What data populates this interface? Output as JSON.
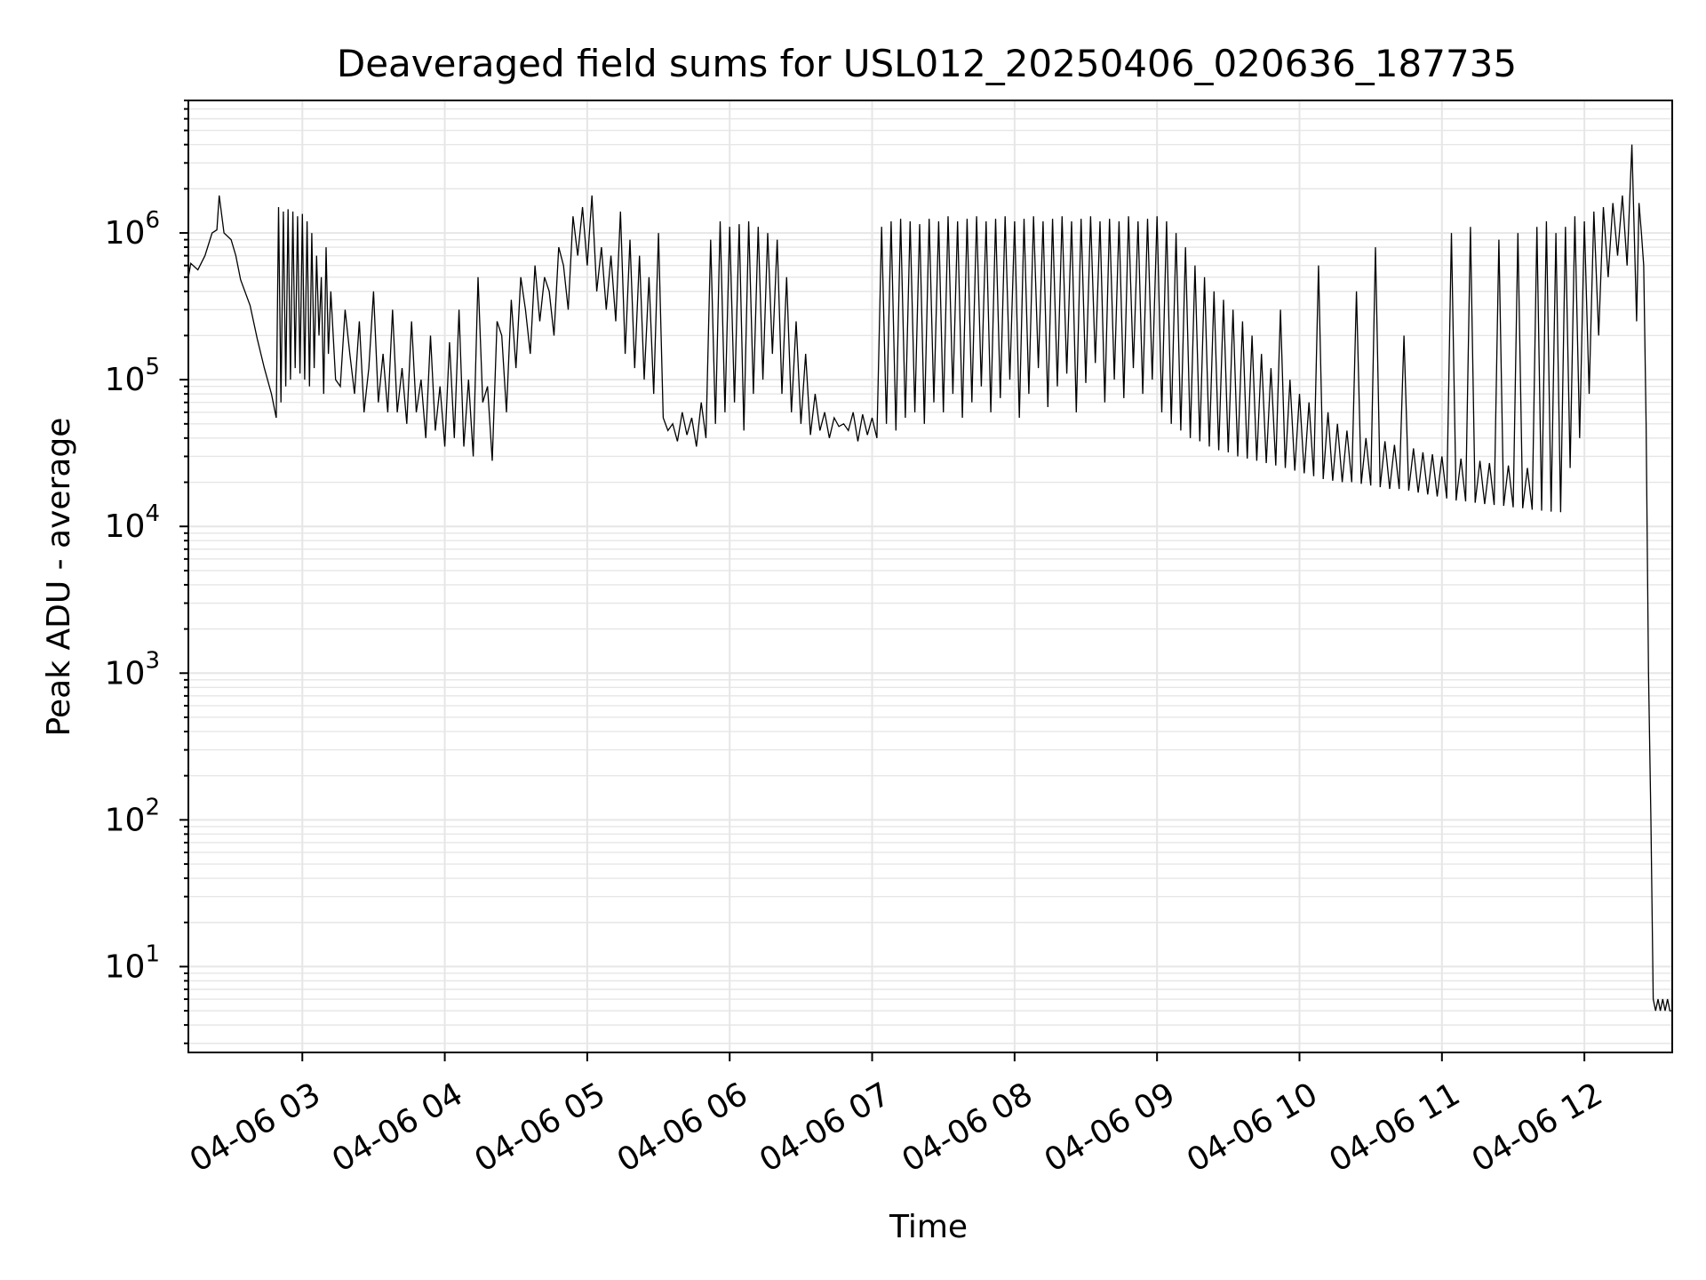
{
  "chart_data": {
    "type": "line",
    "title": "Deaveraged field sums for USL012_20250406_020636_187735",
    "xlabel": "Time",
    "ylabel": "Peak ADU - average",
    "yscale": "log",
    "ylim": [
      2.6,
      8000000
    ],
    "xlim": [
      "2025-04-06 02:12",
      "2025-04-06 12:37"
    ],
    "grid": true,
    "line_color": "#000000",
    "x_ticks": [
      {
        "t": "2025-04-06 03:00",
        "label": "04-06 03"
      },
      {
        "t": "2025-04-06 04:00",
        "label": "04-06 04"
      },
      {
        "t": "2025-04-06 05:00",
        "label": "04-06 05"
      },
      {
        "t": "2025-04-06 06:00",
        "label": "04-06 06"
      },
      {
        "t": "2025-04-06 07:00",
        "label": "04-06 07"
      },
      {
        "t": "2025-04-06 08:00",
        "label": "04-06 08"
      },
      {
        "t": "2025-04-06 09:00",
        "label": "04-06 09"
      },
      {
        "t": "2025-04-06 10:00",
        "label": "04-06 10"
      },
      {
        "t": "2025-04-06 11:00",
        "label": "04-06 11"
      },
      {
        "t": "2025-04-06 12:00",
        "label": "04-06 12"
      }
    ],
    "y_ticks": [
      {
        "value": 10,
        "base": "10",
        "exp": "1"
      },
      {
        "value": 100,
        "base": "10",
        "exp": "2"
      },
      {
        "value": 1000,
        "base": "10",
        "exp": "3"
      },
      {
        "value": 10000,
        "base": "10",
        "exp": "4"
      },
      {
        "value": 100000,
        "base": "10",
        "exp": "5"
      },
      {
        "value": 1000000,
        "base": "10",
        "exp": "6"
      }
    ],
    "series": [
      {
        "x": [
          "2025-04-06 02:12",
          "2025-04-06 02:13",
          "2025-04-06 02:16",
          "2025-04-06 02:19",
          "2025-04-06 02:22",
          "2025-04-06 02:24",
          "2025-04-06 02:25",
          "2025-04-06 02:27",
          "2025-04-06 02:30",
          "2025-04-06 02:32",
          "2025-04-06 02:34",
          "2025-04-06 02:38",
          "2025-04-06 02:41",
          "2025-04-06 02:44",
          "2025-04-06 02:47",
          "2025-04-06 02:49",
          "2025-04-06 02:50",
          "2025-04-06 02:51",
          "2025-04-06 02:52",
          "2025-04-06 02:53",
          "2025-04-06 02:54",
          "2025-04-06 02:55",
          "2025-04-06 02:56",
          "2025-04-06 02:57",
          "2025-04-06 02:58",
          "2025-04-06 02:59",
          "2025-04-06 03:00",
          "2025-04-06 03:01",
          "2025-04-06 03:02",
          "2025-04-06 03:03",
          "2025-04-06 03:04",
          "2025-04-06 03:05",
          "2025-04-06 03:06",
          "2025-04-06 03:07",
          "2025-04-06 03:08",
          "2025-04-06 03:09",
          "2025-04-06 03:10",
          "2025-04-06 03:11",
          "2025-04-06 03:12",
          "2025-04-06 03:14",
          "2025-04-06 03:16",
          "2025-04-06 03:18",
          "2025-04-06 03:20",
          "2025-04-06 03:22",
          "2025-04-06 03:24",
          "2025-04-06 03:26",
          "2025-04-06 03:28",
          "2025-04-06 03:30",
          "2025-04-06 03:32",
          "2025-04-06 03:34",
          "2025-04-06 03:36",
          "2025-04-06 03:38",
          "2025-04-06 03:40",
          "2025-04-06 03:42",
          "2025-04-06 03:44",
          "2025-04-06 03:46",
          "2025-04-06 03:48",
          "2025-04-06 03:50",
          "2025-04-06 03:52",
          "2025-04-06 03:54",
          "2025-04-06 03:56",
          "2025-04-06 03:58",
          "2025-04-06 04:00",
          "2025-04-06 04:02",
          "2025-04-06 04:04",
          "2025-04-06 04:06",
          "2025-04-06 04:08",
          "2025-04-06 04:10",
          "2025-04-06 04:12",
          "2025-04-06 04:14",
          "2025-04-06 04:16",
          "2025-04-06 04:18",
          "2025-04-06 04:20",
          "2025-04-06 04:22",
          "2025-04-06 04:24",
          "2025-04-06 04:26",
          "2025-04-06 04:28",
          "2025-04-06 04:30",
          "2025-04-06 04:32",
          "2025-04-06 04:34",
          "2025-04-06 04:36",
          "2025-04-06 04:38",
          "2025-04-06 04:40",
          "2025-04-06 04:42",
          "2025-04-06 04:44",
          "2025-04-06 04:46",
          "2025-04-06 04:48",
          "2025-04-06 04:50",
          "2025-04-06 04:52",
          "2025-04-06 04:54",
          "2025-04-06 04:56",
          "2025-04-06 04:58",
          "2025-04-06 05:00",
          "2025-04-06 05:02",
          "2025-04-06 05:04",
          "2025-04-06 05:06",
          "2025-04-06 05:08",
          "2025-04-06 05:10",
          "2025-04-06 05:12",
          "2025-04-06 05:14",
          "2025-04-06 05:16",
          "2025-04-06 05:18",
          "2025-04-06 05:20",
          "2025-04-06 05:22",
          "2025-04-06 05:24",
          "2025-04-06 05:26",
          "2025-04-06 05:28",
          "2025-04-06 05:30",
          "2025-04-06 05:32",
          "2025-04-06 05:34",
          "2025-04-06 05:36",
          "2025-04-06 05:38",
          "2025-04-06 05:40",
          "2025-04-06 05:42",
          "2025-04-06 05:44",
          "2025-04-06 05:46",
          "2025-04-06 05:48",
          "2025-04-06 05:50",
          "2025-04-06 05:52",
          "2025-04-06 05:54",
          "2025-04-06 05:56",
          "2025-04-06 05:58",
          "2025-04-06 06:00",
          "2025-04-06 06:02",
          "2025-04-06 06:04",
          "2025-04-06 06:06",
          "2025-04-06 06:08",
          "2025-04-06 06:10",
          "2025-04-06 06:12",
          "2025-04-06 06:14",
          "2025-04-06 06:16",
          "2025-04-06 06:18",
          "2025-04-06 06:20",
          "2025-04-06 06:22",
          "2025-04-06 06:24",
          "2025-04-06 06:26",
          "2025-04-06 06:28",
          "2025-04-06 06:30",
          "2025-04-06 06:32",
          "2025-04-06 06:34",
          "2025-04-06 06:36",
          "2025-04-06 06:38",
          "2025-04-06 06:40",
          "2025-04-06 06:42",
          "2025-04-06 06:44",
          "2025-04-06 06:46",
          "2025-04-06 06:48",
          "2025-04-06 06:50",
          "2025-04-06 06:52",
          "2025-04-06 06:54",
          "2025-04-06 06:56",
          "2025-04-06 06:58",
          "2025-04-06 07:00",
          "2025-04-06 07:02",
          "2025-04-06 07:04",
          "2025-04-06 07:06",
          "2025-04-06 07:08",
          "2025-04-06 07:10",
          "2025-04-06 07:12",
          "2025-04-06 07:14",
          "2025-04-06 07:16",
          "2025-04-06 07:18",
          "2025-04-06 07:20",
          "2025-04-06 07:22",
          "2025-04-06 07:24",
          "2025-04-06 07:26",
          "2025-04-06 07:28",
          "2025-04-06 07:30",
          "2025-04-06 07:32",
          "2025-04-06 07:34",
          "2025-04-06 07:36",
          "2025-04-06 07:38",
          "2025-04-06 07:40",
          "2025-04-06 07:42",
          "2025-04-06 07:44",
          "2025-04-06 07:46",
          "2025-04-06 07:48",
          "2025-04-06 07:50",
          "2025-04-06 07:52",
          "2025-04-06 07:54",
          "2025-04-06 07:56",
          "2025-04-06 07:58",
          "2025-04-06 08:00",
          "2025-04-06 08:02",
          "2025-04-06 08:04",
          "2025-04-06 08:06",
          "2025-04-06 08:08",
          "2025-04-06 08:10",
          "2025-04-06 08:12",
          "2025-04-06 08:14",
          "2025-04-06 08:16",
          "2025-04-06 08:18",
          "2025-04-06 08:20",
          "2025-04-06 08:22",
          "2025-04-06 08:24",
          "2025-04-06 08:26",
          "2025-04-06 08:28",
          "2025-04-06 08:30",
          "2025-04-06 08:32",
          "2025-04-06 08:34",
          "2025-04-06 08:36",
          "2025-04-06 08:38",
          "2025-04-06 08:40",
          "2025-04-06 08:42",
          "2025-04-06 08:44",
          "2025-04-06 08:46",
          "2025-04-06 08:48",
          "2025-04-06 08:50",
          "2025-04-06 08:52",
          "2025-04-06 08:54",
          "2025-04-06 08:56",
          "2025-04-06 08:58",
          "2025-04-06 09:00",
          "2025-04-06 09:02",
          "2025-04-06 09:04",
          "2025-04-06 09:06",
          "2025-04-06 09:08",
          "2025-04-06 09:10",
          "2025-04-06 09:12",
          "2025-04-06 09:14",
          "2025-04-06 09:16",
          "2025-04-06 09:18",
          "2025-04-06 09:20",
          "2025-04-06 09:22",
          "2025-04-06 09:24",
          "2025-04-06 09:26",
          "2025-04-06 09:28",
          "2025-04-06 09:30",
          "2025-04-06 09:32",
          "2025-04-06 09:34",
          "2025-04-06 09:36",
          "2025-04-06 09:38",
          "2025-04-06 09:40",
          "2025-04-06 09:42",
          "2025-04-06 09:44",
          "2025-04-06 09:46",
          "2025-04-06 09:48",
          "2025-04-06 09:50",
          "2025-04-06 09:52",
          "2025-04-06 09:54",
          "2025-04-06 09:56",
          "2025-04-06 09:58",
          "2025-04-06 10:00",
          "2025-04-06 10:02",
          "2025-04-06 10:04",
          "2025-04-06 10:06",
          "2025-04-06 10:08",
          "2025-04-06 10:10",
          "2025-04-06 10:12",
          "2025-04-06 10:14",
          "2025-04-06 10:16",
          "2025-04-06 10:18",
          "2025-04-06 10:20",
          "2025-04-06 10:22",
          "2025-04-06 10:24",
          "2025-04-06 10:26",
          "2025-04-06 10:28",
          "2025-04-06 10:30",
          "2025-04-06 10:32",
          "2025-04-06 10:34",
          "2025-04-06 10:36",
          "2025-04-06 10:38",
          "2025-04-06 10:40",
          "2025-04-06 10:42",
          "2025-04-06 10:44",
          "2025-04-06 10:46",
          "2025-04-06 10:48",
          "2025-04-06 10:50",
          "2025-04-06 10:52",
          "2025-04-06 10:54",
          "2025-04-06 10:56",
          "2025-04-06 10:58",
          "2025-04-06 11:00",
          "2025-04-06 11:02",
          "2025-04-06 11:04",
          "2025-04-06 11:06",
          "2025-04-06 11:08",
          "2025-04-06 11:10",
          "2025-04-06 11:12",
          "2025-04-06 11:14",
          "2025-04-06 11:16",
          "2025-04-06 11:18",
          "2025-04-06 11:20",
          "2025-04-06 11:22",
          "2025-04-06 11:24",
          "2025-04-06 11:26",
          "2025-04-06 11:28",
          "2025-04-06 11:30",
          "2025-04-06 11:32",
          "2025-04-06 11:34",
          "2025-04-06 11:36",
          "2025-04-06 11:38",
          "2025-04-06 11:40",
          "2025-04-06 11:42",
          "2025-04-06 11:44",
          "2025-04-06 11:46",
          "2025-04-06 11:48",
          "2025-04-06 11:50",
          "2025-04-06 11:52",
          "2025-04-06 11:54",
          "2025-04-06 11:56",
          "2025-04-06 11:58",
          "2025-04-06 12:00",
          "2025-04-06 12:02",
          "2025-04-06 12:04",
          "2025-04-06 12:06",
          "2025-04-06 12:08",
          "2025-04-06 12:10",
          "2025-04-06 12:12",
          "2025-04-06 12:14",
          "2025-04-06 12:16",
          "2025-04-06 12:18",
          "2025-04-06 12:20",
          "2025-04-06 12:22",
          "2025-04-06 12:23",
          "2025-04-06 12:24",
          "2025-04-06 12:25",
          "2025-04-06 12:26",
          "2025-04-06 12:27",
          "2025-04-06 12:28",
          "2025-04-06 12:29",
          "2025-04-06 12:30",
          "2025-04-06 12:31",
          "2025-04-06 12:32",
          "2025-04-06 12:33",
          "2025-04-06 12:34",
          "2025-04-06 12:35",
          "2025-04-06 12:36",
          "2025-04-06 12:37"
        ],
        "y": [
          500000,
          620000,
          560000,
          700000,
          1000000,
          1050000,
          1800000,
          1000000,
          900000,
          700000,
          480000,
          320000,
          190000,
          120000,
          80000,
          55000,
          1500000,
          70000,
          1400000,
          90000,
          1450000,
          100000,
          1400000,
          120000,
          1300000,
          110000,
          1350000,
          100000,
          1200000,
          90000,
          1000000,
          120000,
          700000,
          200000,
          500000,
          80000,
          800000,
          150000,
          400000,
          100000,
          90000,
          300000,
          150000,
          80000,
          250000,
          60000,
          120000,
          400000,
          70000,
          150000,
          60000,
          300000,
          60000,
          120000,
          50000,
          250000,
          60000,
          100000,
          40000,
          200000,
          45000,
          90000,
          35000,
          180000,
          40000,
          300000,
          35000,
          100000,
          30000,
          500000,
          70000,
          90000,
          28000,
          250000,
          200000,
          60000,
          350000,
          120000,
          500000,
          300000,
          150000,
          600000,
          250000,
          500000,
          400000,
          200000,
          800000,
          600000,
          300000,
          1300000,
          700000,
          1500000,
          600000,
          1800000,
          400000,
          800000,
          300000,
          700000,
          250000,
          1400000,
          150000,
          900000,
          120000,
          700000,
          100000,
          500000,
          80000,
          1000000,
          55000,
          45000,
          50000,
          38000,
          60000,
          42000,
          55000,
          35000,
          70000,
          40000,
          900000,
          50000,
          1200000,
          60000,
          1100000,
          70000,
          1150000,
          45000,
          1200000,
          80000,
          1100000,
          100000,
          1000000,
          150000,
          900000,
          80000,
          500000,
          60000,
          250000,
          50000,
          150000,
          42000,
          80000,
          45000,
          60000,
          40000,
          55000,
          48000,
          50000,
          45000,
          60000,
          38000,
          58000,
          42000,
          55000,
          40000,
          1100000,
          50000,
          1200000,
          45000,
          1250000,
          55000,
          1200000,
          60000,
          1150000,
          50000,
          1250000,
          70000,
          1200000,
          60000,
          1300000,
          80000,
          1200000,
          55000,
          1250000,
          70000,
          1300000,
          90000,
          1200000,
          60000,
          1250000,
          75000,
          1300000,
          100000,
          1200000,
          55000,
          1250000,
          80000,
          1300000,
          120000,
          1200000,
          65000,
          1250000,
          90000,
          1300000,
          110000,
          1200000,
          60000,
          1250000,
          95000,
          1300000,
          130000,
          1200000,
          70000,
          1250000,
          100000,
          1200000,
          75000,
          1300000,
          120000,
          1200000,
          80000,
          1250000,
          100000,
          1300000,
          60000,
          1200000,
          50000,
          1000000,
          45000,
          800000,
          40000,
          600000,
          38000,
          500000,
          35000,
          400000,
          33000,
          350000,
          32000,
          300000,
          30000,
          250000,
          29000,
          200000,
          28000,
          150000,
          27000,
          120000,
          26000,
          300000,
          25000,
          100000,
          24000,
          80000,
          23000,
          70000,
          22000,
          600000,
          21000,
          60000,
          20500,
          50000,
          20000,
          45000,
          20000,
          400000,
          19500,
          40000,
          19000,
          800000,
          18500,
          38000,
          18000,
          36000,
          18000,
          200000,
          17500,
          34000,
          17000,
          32000,
          16500,
          31000,
          16000,
          30000,
          15500,
          1000000,
          15000,
          29000,
          14800,
          1100000,
          14500,
          28000,
          14200,
          27000,
          14000,
          900000,
          13800,
          26000,
          13500,
          1000000,
          13300,
          25000,
          13000,
          1100000,
          12800,
          1200000,
          12600,
          1000000,
          12500,
          1100000,
          25000,
          1300000,
          40000,
          1200000,
          80000,
          1400000,
          200000,
          1500000,
          500000,
          1600000,
          700000,
          1800000,
          600000,
          4000000,
          250000,
          1600000,
          1000000,
          600000,
          50000,
          1000,
          100,
          6,
          5,
          6,
          5,
          6,
          5,
          6,
          5,
          5
        ]
      }
    ]
  }
}
